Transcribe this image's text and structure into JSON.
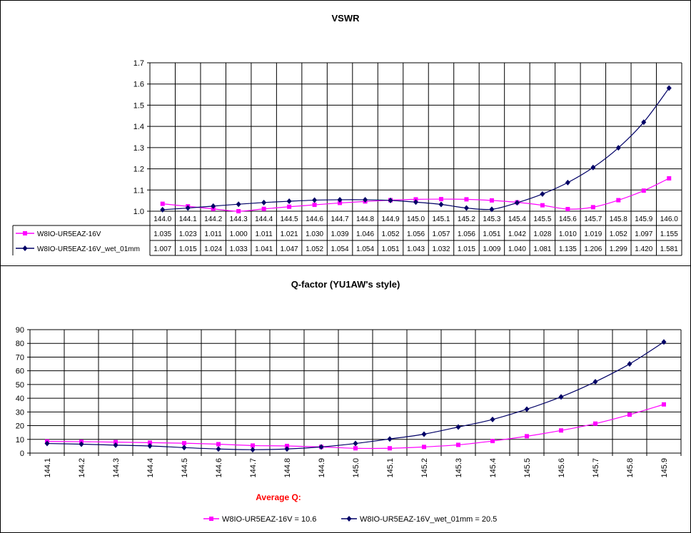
{
  "chart_data": [
    {
      "type": "line",
      "title": "VSWR",
      "categories": [
        "144.0",
        "144.1",
        "144.2",
        "144.3",
        "144.4",
        "144.5",
        "144.6",
        "144.7",
        "144.8",
        "144.9",
        "145.0",
        "145.1",
        "145.2",
        "145.3",
        "145.4",
        "145.5",
        "145.6",
        "145.7",
        "145.8",
        "145.9",
        "146.0"
      ],
      "yticks": [
        "1.0",
        "1.1",
        "1.2",
        "1.3",
        "1.4",
        "1.5",
        "1.6",
        "1.7"
      ],
      "ylim": [
        1.0,
        1.7
      ],
      "grid": true,
      "legend": "data-table",
      "series": [
        {
          "name": "W8IO-UR5EAZ-16V",
          "color": "#ff00ff",
          "marker": "square",
          "values": [
            "1.035",
            "1.023",
            "1.011",
            "1.000",
            "1.011",
            "1.021",
            "1.030",
            "1.039",
            "1.046",
            "1.052",
            "1.056",
            "1.057",
            "1.056",
            "1.051",
            "1.042",
            "1.028",
            "1.010",
            "1.019",
            "1.052",
            "1.097",
            "1.155"
          ]
        },
        {
          "name": "W8IO-UR5EAZ-16V_wet_01mm",
          "color": "#000066",
          "marker": "diamond",
          "values": [
            "1.007",
            "1.015",
            "1.024",
            "1.033",
            "1.041",
            "1.047",
            "1.052",
            "1.054",
            "1.054",
            "1.051",
            "1.043",
            "1.032",
            "1.015",
            "1.009",
            "1.040",
            "1.081",
            "1.135",
            "1.206",
            "1.299",
            "1.420",
            "1.581"
          ]
        }
      ]
    },
    {
      "type": "line",
      "title": "Q-factor (YU1AW's style)",
      "categories": [
        "144.1",
        "144.2",
        "144.3",
        "144.4",
        "144.5",
        "144.6",
        "144.7",
        "144.8",
        "144.9",
        "145.0",
        "145.1",
        "145.2",
        "145.3",
        "145.4",
        "145.5",
        "145.6",
        "145.7",
        "145.8",
        "145.9"
      ],
      "yticks": [
        "0",
        "10",
        "20",
        "30",
        "40",
        "50",
        "60",
        "70",
        "80",
        "90"
      ],
      "ylim": [
        0,
        90
      ],
      "grid": true,
      "legend": "bottom",
      "annotation": "Average Q:",
      "series": [
        {
          "name": "W8IO-UR5EAZ-16V = 10.6",
          "color": "#ff00ff",
          "marker": "square",
          "values": [
            8.5,
            8.3,
            8.0,
            7.6,
            7.2,
            6.5,
            5.5,
            5.2,
            4.5,
            3.5,
            3.5,
            4.5,
            6.0,
            8.8,
            12.3,
            16.5,
            21.5,
            28.0,
            35.5
          ]
        },
        {
          "name": "W8IO-UR5EAZ-16V_wet_01mm = 20.5",
          "color": "#000066",
          "marker": "diamond",
          "values": [
            7.0,
            6.5,
            5.8,
            5.2,
            4.0,
            3.0,
            2.5,
            3.0,
            4.5,
            7.0,
            10.3,
            13.8,
            19.0,
            24.5,
            32.0,
            41.0,
            52.0,
            65.0,
            81.0
          ]
        }
      ]
    }
  ]
}
